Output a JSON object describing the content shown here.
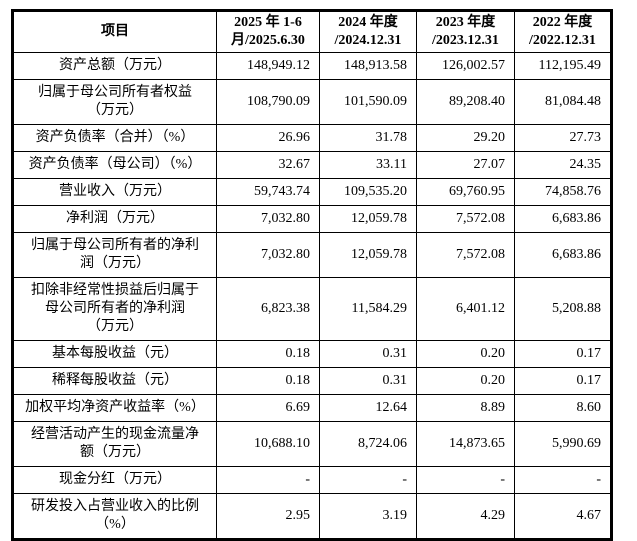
{
  "page": {
    "background_color": "#ffffff",
    "text_color": "#000000",
    "border_color": "#000000"
  },
  "table": {
    "header": {
      "item_label": "项目",
      "periods": [
        "2025 年 1-6\n月/2025.6.30",
        "2024 年度\n/2024.12.31",
        "2023 年度\n/2023.12.31",
        "2022 年度\n/2022.12.31"
      ]
    },
    "rows": [
      {
        "label": "资产总额（万元）",
        "values": [
          "148,949.12",
          "148,913.58",
          "126,002.57",
          "112,195.49"
        ]
      },
      {
        "label": "归属于母公司所有者权益\n（万元）",
        "values": [
          "108,790.09",
          "101,590.09",
          "89,208.40",
          "81,084.48"
        ]
      },
      {
        "label": "资产负债率（合并）（%）",
        "values": [
          "26.96",
          "31.78",
          "29.20",
          "27.73"
        ]
      },
      {
        "label": "资产负债率（母公司）（%）",
        "values": [
          "32.67",
          "33.11",
          "27.07",
          "24.35"
        ]
      },
      {
        "label": "营业收入（万元）",
        "values": [
          "59,743.74",
          "109,535.20",
          "69,760.95",
          "74,858.76"
        ]
      },
      {
        "label": "净利润（万元）",
        "values": [
          "7,032.80",
          "12,059.78",
          "7,572.08",
          "6,683.86"
        ]
      },
      {
        "label": "归属于母公司所有者的净利\n润（万元）",
        "values": [
          "7,032.80",
          "12,059.78",
          "7,572.08",
          "6,683.86"
        ]
      },
      {
        "label": "扣除非经常性损益后归属于\n母公司所有者的净利润\n（万元）",
        "values": [
          "6,823.38",
          "11,584.29",
          "6,401.12",
          "5,208.88"
        ]
      },
      {
        "label": "基本每股收益（元）",
        "values": [
          "0.18",
          "0.31",
          "0.20",
          "0.17"
        ]
      },
      {
        "label": "稀释每股收益（元）",
        "values": [
          "0.18",
          "0.31",
          "0.20",
          "0.17"
        ]
      },
      {
        "label": "加权平均净资产收益率（%）",
        "values": [
          "6.69",
          "12.64",
          "8.89",
          "8.60"
        ]
      },
      {
        "label": "经营活动产生的现金流量净\n额（万元）",
        "values": [
          "10,688.10",
          "8,724.06",
          "14,873.65",
          "5,990.69"
        ]
      },
      {
        "label": "现金分红（万元）",
        "values": [
          "-",
          "-",
          "-",
          "-"
        ]
      },
      {
        "label": "研发投入占营业收入的比例\n（%）",
        "values": [
          "2.95",
          "3.19",
          "4.29",
          "4.67"
        ]
      }
    ]
  }
}
